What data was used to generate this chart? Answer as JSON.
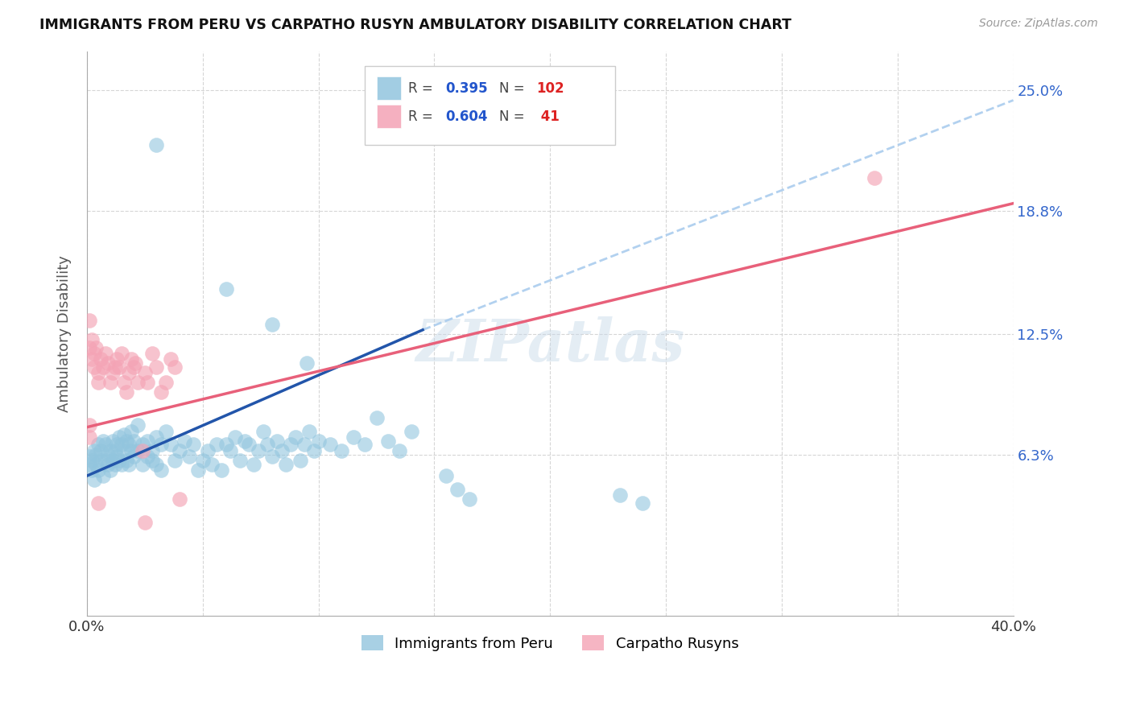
{
  "title": "IMMIGRANTS FROM PERU VS CARPATHO RUSYN AMBULATORY DISABILITY CORRELATION CHART",
  "source": "Source: ZipAtlas.com",
  "ylabel": "Ambulatory Disability",
  "y_ticks": [
    "6.3%",
    "12.5%",
    "18.8%",
    "25.0%"
  ],
  "y_tick_vals": [
    0.063,
    0.125,
    0.188,
    0.25
  ],
  "watermark": "ZIPatlas",
  "peru_color": "#92C5DE",
  "rusyn_color": "#F4A3B5",
  "peru_line_color": "#2255AA",
  "rusyn_line_color": "#E8607A",
  "dashed_color": "#AACCEE",
  "x_range": [
    0.0,
    0.4
  ],
  "y_range": [
    -0.02,
    0.27
  ],
  "peru_line": [
    [
      0.0,
      0.052
    ],
    [
      0.145,
      0.127
    ]
  ],
  "peru_line_ext": [
    [
      0.145,
      0.127
    ],
    [
      0.4,
      0.245
    ]
  ],
  "rusyn_line": [
    [
      0.0,
      0.077
    ],
    [
      0.4,
      0.192
    ]
  ],
  "peru_scatter": [
    [
      0.001,
      0.058
    ],
    [
      0.001,
      0.062
    ],
    [
      0.002,
      0.055
    ],
    [
      0.002,
      0.06
    ],
    [
      0.003,
      0.05
    ],
    [
      0.003,
      0.065
    ],
    [
      0.004,
      0.058
    ],
    [
      0.004,
      0.063
    ],
    [
      0.005,
      0.055
    ],
    [
      0.005,
      0.068
    ],
    [
      0.006,
      0.06
    ],
    [
      0.006,
      0.065
    ],
    [
      0.007,
      0.052
    ],
    [
      0.007,
      0.07
    ],
    [
      0.008,
      0.06
    ],
    [
      0.008,
      0.068
    ],
    [
      0.009,
      0.058
    ],
    [
      0.009,
      0.063
    ],
    [
      0.01,
      0.055
    ],
    [
      0.01,
      0.065
    ],
    [
      0.011,
      0.06
    ],
    [
      0.011,
      0.07
    ],
    [
      0.012,
      0.058
    ],
    [
      0.012,
      0.065
    ],
    [
      0.013,
      0.062
    ],
    [
      0.013,
      0.068
    ],
    [
      0.014,
      0.06
    ],
    [
      0.014,
      0.072
    ],
    [
      0.015,
      0.058
    ],
    [
      0.015,
      0.068
    ],
    [
      0.016,
      0.065
    ],
    [
      0.016,
      0.073
    ],
    [
      0.017,
      0.06
    ],
    [
      0.017,
      0.07
    ],
    [
      0.018,
      0.058
    ],
    [
      0.018,
      0.068
    ],
    [
      0.019,
      0.065
    ],
    [
      0.019,
      0.075
    ],
    [
      0.02,
      0.062
    ],
    [
      0.02,
      0.07
    ],
    [
      0.022,
      0.065
    ],
    [
      0.022,
      0.078
    ],
    [
      0.024,
      0.068
    ],
    [
      0.024,
      0.058
    ],
    [
      0.026,
      0.07
    ],
    [
      0.026,
      0.062
    ],
    [
      0.028,
      0.065
    ],
    [
      0.028,
      0.06
    ],
    [
      0.03,
      0.072
    ],
    [
      0.03,
      0.058
    ],
    [
      0.032,
      0.068
    ],
    [
      0.032,
      0.055
    ],
    [
      0.034,
      0.075
    ],
    [
      0.036,
      0.068
    ],
    [
      0.038,
      0.06
    ],
    [
      0.04,
      0.065
    ],
    [
      0.042,
      0.07
    ],
    [
      0.044,
      0.062
    ],
    [
      0.046,
      0.068
    ],
    [
      0.048,
      0.055
    ],
    [
      0.05,
      0.06
    ],
    [
      0.052,
      0.065
    ],
    [
      0.054,
      0.058
    ],
    [
      0.056,
      0.068
    ],
    [
      0.058,
      0.055
    ],
    [
      0.06,
      0.068
    ],
    [
      0.062,
      0.065
    ],
    [
      0.064,
      0.072
    ],
    [
      0.066,
      0.06
    ],
    [
      0.068,
      0.07
    ],
    [
      0.07,
      0.068
    ],
    [
      0.072,
      0.058
    ],
    [
      0.074,
      0.065
    ],
    [
      0.076,
      0.075
    ],
    [
      0.078,
      0.068
    ],
    [
      0.08,
      0.062
    ],
    [
      0.082,
      0.07
    ],
    [
      0.084,
      0.065
    ],
    [
      0.086,
      0.058
    ],
    [
      0.088,
      0.068
    ],
    [
      0.09,
      0.072
    ],
    [
      0.092,
      0.06
    ],
    [
      0.094,
      0.068
    ],
    [
      0.096,
      0.075
    ],
    [
      0.098,
      0.065
    ],
    [
      0.1,
      0.07
    ],
    [
      0.105,
      0.068
    ],
    [
      0.11,
      0.065
    ],
    [
      0.115,
      0.072
    ],
    [
      0.12,
      0.068
    ],
    [
      0.125,
      0.082
    ],
    [
      0.13,
      0.07
    ],
    [
      0.135,
      0.065
    ],
    [
      0.14,
      0.075
    ],
    [
      0.155,
      0.052
    ],
    [
      0.16,
      0.045
    ],
    [
      0.165,
      0.04
    ],
    [
      0.23,
      0.042
    ],
    [
      0.24,
      0.038
    ],
    [
      0.03,
      0.222
    ],
    [
      0.06,
      0.148
    ],
    [
      0.08,
      0.13
    ],
    [
      0.095,
      0.11
    ]
  ],
  "rusyn_scatter": [
    [
      0.001,
      0.132
    ],
    [
      0.001,
      0.118
    ],
    [
      0.001,
      0.078
    ],
    [
      0.001,
      0.072
    ],
    [
      0.002,
      0.122
    ],
    [
      0.002,
      0.112
    ],
    [
      0.003,
      0.115
    ],
    [
      0.003,
      0.108
    ],
    [
      0.004,
      0.118
    ],
    [
      0.005,
      0.1
    ],
    [
      0.005,
      0.105
    ],
    [
      0.006,
      0.112
    ],
    [
      0.007,
      0.108
    ],
    [
      0.008,
      0.115
    ],
    [
      0.009,
      0.11
    ],
    [
      0.01,
      0.1
    ],
    [
      0.011,
      0.105
    ],
    [
      0.012,
      0.108
    ],
    [
      0.013,
      0.112
    ],
    [
      0.014,
      0.108
    ],
    [
      0.015,
      0.115
    ],
    [
      0.016,
      0.1
    ],
    [
      0.017,
      0.095
    ],
    [
      0.018,
      0.105
    ],
    [
      0.019,
      0.112
    ],
    [
      0.02,
      0.108
    ],
    [
      0.021,
      0.11
    ],
    [
      0.022,
      0.1
    ],
    [
      0.024,
      0.065
    ],
    [
      0.025,
      0.105
    ],
    [
      0.026,
      0.1
    ],
    [
      0.028,
      0.115
    ],
    [
      0.03,
      0.108
    ],
    [
      0.032,
      0.095
    ],
    [
      0.034,
      0.1
    ],
    [
      0.036,
      0.112
    ],
    [
      0.038,
      0.108
    ],
    [
      0.04,
      0.04
    ],
    [
      0.34,
      0.205
    ],
    [
      0.005,
      0.038
    ],
    [
      0.025,
      0.028
    ]
  ]
}
